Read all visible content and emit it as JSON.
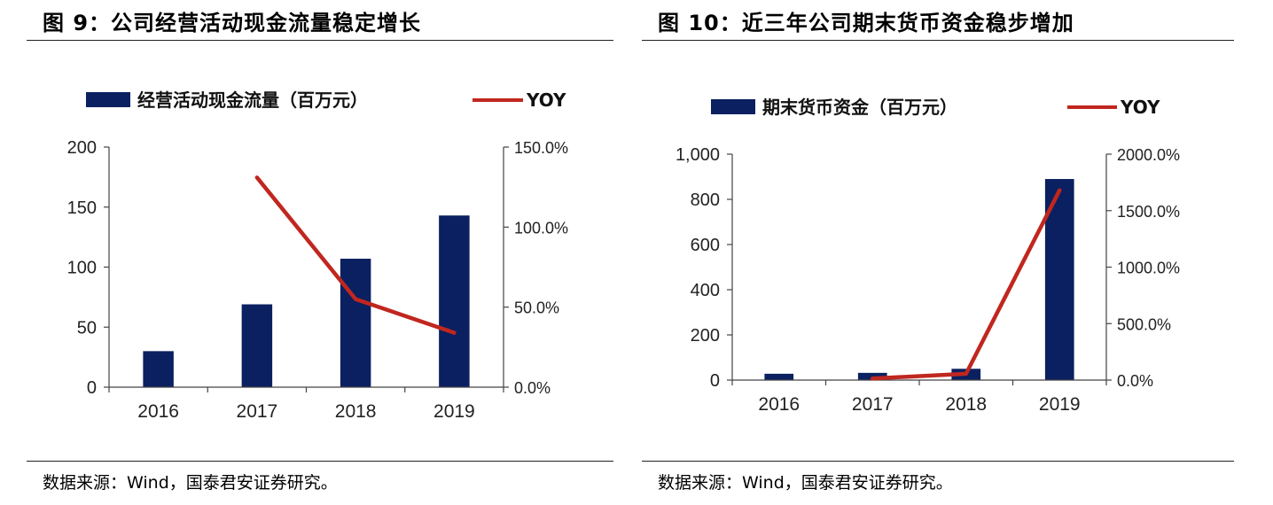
{
  "figures": [
    {
      "title": "图 9：公司经营活动现金流量稳定增长",
      "source": "数据来源：Wind，国泰君安证券研究。",
      "legend": {
        "bar": "经营活动现金流量（百万元）",
        "line": "YOY"
      },
      "colors": {
        "bar": "#0b2060",
        "line": "#c0271f"
      }
    },
    {
      "title": "图 10：近三年公司期末货币资金稳步增加",
      "source": "数据来源：Wind，国泰君安证券研究。",
      "legend": {
        "bar": "期末货币资金（百万元）",
        "line": "YOY"
      },
      "colors": {
        "bar": "#0b2060",
        "line": "#c0271f"
      }
    }
  ],
  "chart_data": [
    {
      "type": "bar",
      "categories": [
        "2016",
        "2017",
        "2018",
        "2019"
      ],
      "series": [
        {
          "name": "经营活动现金流量（百万元）",
          "type": "bar",
          "axis": "left",
          "values": [
            30,
            69,
            107,
            143
          ]
        },
        {
          "name": "YOY",
          "type": "line",
          "axis": "right",
          "values": [
            null,
            1.31,
            0.55,
            0.34
          ]
        }
      ],
      "left_axis": {
        "ylim": [
          0,
          200
        ],
        "ticks": [
          0,
          50,
          100,
          150,
          200
        ],
        "tick_labels": [
          "0",
          "50",
          "100",
          "150",
          "200"
        ]
      },
      "right_axis": {
        "ylim": [
          0,
          1.5
        ],
        "ticks": [
          0,
          0.5,
          1.0,
          1.5
        ],
        "tick_labels": [
          "0.0%",
          "50.0%",
          "100.0%",
          "150.0%"
        ]
      },
      "grid": false,
      "legend_position": "top"
    },
    {
      "type": "bar",
      "categories": [
        "2016",
        "2017",
        "2018",
        "2019"
      ],
      "series": [
        {
          "name": "期末货币资金（百万元）",
          "type": "bar",
          "axis": "left",
          "values": [
            28,
            32,
            50,
            890
          ]
        },
        {
          "name": "YOY",
          "type": "line",
          "axis": "right",
          "values": [
            null,
            0.14,
            0.56,
            16.8
          ]
        }
      ],
      "left_axis": {
        "ylim": [
          0,
          1000
        ],
        "ticks": [
          0,
          200,
          400,
          600,
          800,
          1000
        ],
        "tick_labels": [
          "0",
          "200",
          "400",
          "600",
          "800",
          "1,000"
        ]
      },
      "right_axis": {
        "ylim": [
          0,
          20
        ],
        "ticks": [
          0,
          5,
          10,
          15,
          20
        ],
        "tick_labels": [
          "0.0%",
          "500.0%",
          "1000.0%",
          "1500.0%",
          "2000.0%"
        ]
      },
      "grid": false,
      "legend_position": "top"
    }
  ]
}
